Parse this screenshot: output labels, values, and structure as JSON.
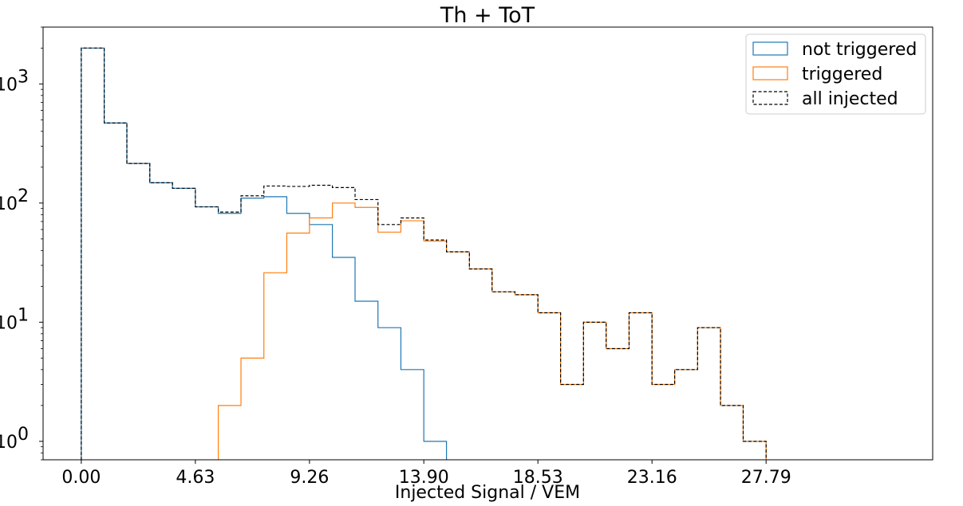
{
  "chart_data": {
    "type": "histogram",
    "title": "Th + ToT",
    "xlabel": "Injected Signal / VEM",
    "ylabel": "",
    "yscale": "log",
    "xlim": [
      -1.55,
      34.55
    ],
    "ylim": [
      0.7,
      3000
    ],
    "x_ticks": [
      "0.00",
      "4.63",
      "9.26",
      "13.90",
      "18.53",
      "23.16",
      "27.79"
    ],
    "x_tick_values": [
      0.0,
      4.63,
      9.26,
      13.9,
      18.53,
      23.16,
      27.79
    ],
    "y_ticks": [
      {
        "value": 1,
        "base": "10",
        "exp": "0"
      },
      {
        "value": 10,
        "base": "10",
        "exp": "1"
      },
      {
        "value": 100,
        "base": "10",
        "exp": "2"
      },
      {
        "value": 1000,
        "base": "10",
        "exp": "3"
      }
    ],
    "legend_position": "top-right",
    "bin_edges": [
      0.0,
      0.93,
      1.85,
      2.78,
      3.7,
      4.63,
      5.56,
      6.48,
      7.41,
      8.34,
      9.26,
      10.19,
      11.11,
      12.04,
      12.97,
      13.9,
      14.82,
      15.75,
      16.67,
      17.6,
      18.53,
      19.45,
      20.38,
      21.3,
      22.23,
      23.16,
      24.08,
      25.01,
      25.94,
      26.86,
      27.79
    ],
    "series": [
      {
        "name": "not triggered",
        "color": "#1f77b4",
        "dashed": false,
        "values": [
          2000,
          470,
          215,
          148,
          133,
          93,
          82,
          110,
          113,
          82,
          66,
          35,
          15,
          9,
          4,
          1,
          0,
          0,
          0,
          0,
          0,
          0,
          0,
          0,
          0,
          0,
          0,
          0,
          0,
          0
        ]
      },
      {
        "name": "triggered",
        "color": "#ff7f0e",
        "dashed": false,
        "values": [
          0,
          0,
          0,
          0,
          0,
          0,
          2,
          5,
          26,
          56,
          75,
          100,
          92,
          57,
          71,
          48,
          39,
          28,
          18,
          17,
          12,
          3,
          10,
          6,
          12,
          3,
          4,
          9,
          2,
          1
        ]
      },
      {
        "name": "all injected",
        "color": "#000000",
        "dashed": true,
        "values": [
          2000,
          470,
          215,
          148,
          133,
          93,
          84,
          115,
          139,
          138,
          141,
          135,
          107,
          66,
          75,
          49,
          39,
          28,
          18,
          17,
          12,
          3,
          10,
          6,
          12,
          3,
          4,
          9,
          2,
          1
        ]
      }
    ]
  }
}
